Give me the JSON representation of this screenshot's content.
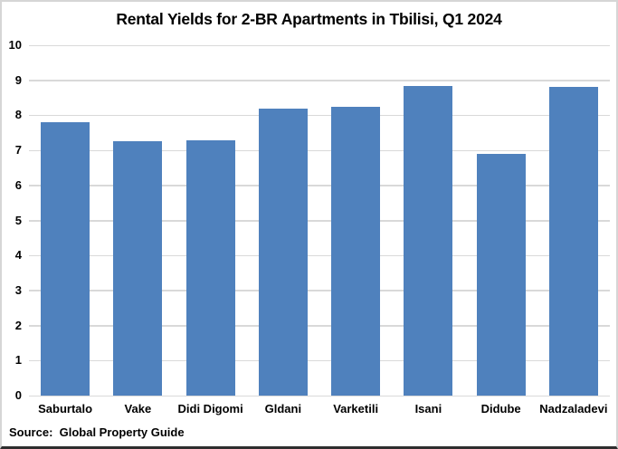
{
  "chart_data": {
    "type": "bar",
    "title": "Rental Yields for 2-BR Apartments in Tbilisi, Q1 2024",
    "categories": [
      "Saburtalo",
      "Vake",
      "Didi Digomi",
      "Gldani",
      "Varketili",
      "Isani",
      "Didube",
      "Nadzaladevi"
    ],
    "values": [
      7.8,
      7.25,
      7.3,
      8.2,
      8.25,
      8.85,
      6.9,
      8.8
    ],
    "xlabel": "",
    "ylabel": "",
    "ylim": [
      0,
      10
    ],
    "yticks": [
      0,
      1,
      2,
      3,
      4,
      5,
      6,
      7,
      8,
      9,
      10
    ],
    "grid": "horizontal",
    "legend": "none",
    "bar_color": "#4F81BD",
    "gridline_color": "#d9d9d9",
    "source": "Source:  Global Property Guide"
  }
}
